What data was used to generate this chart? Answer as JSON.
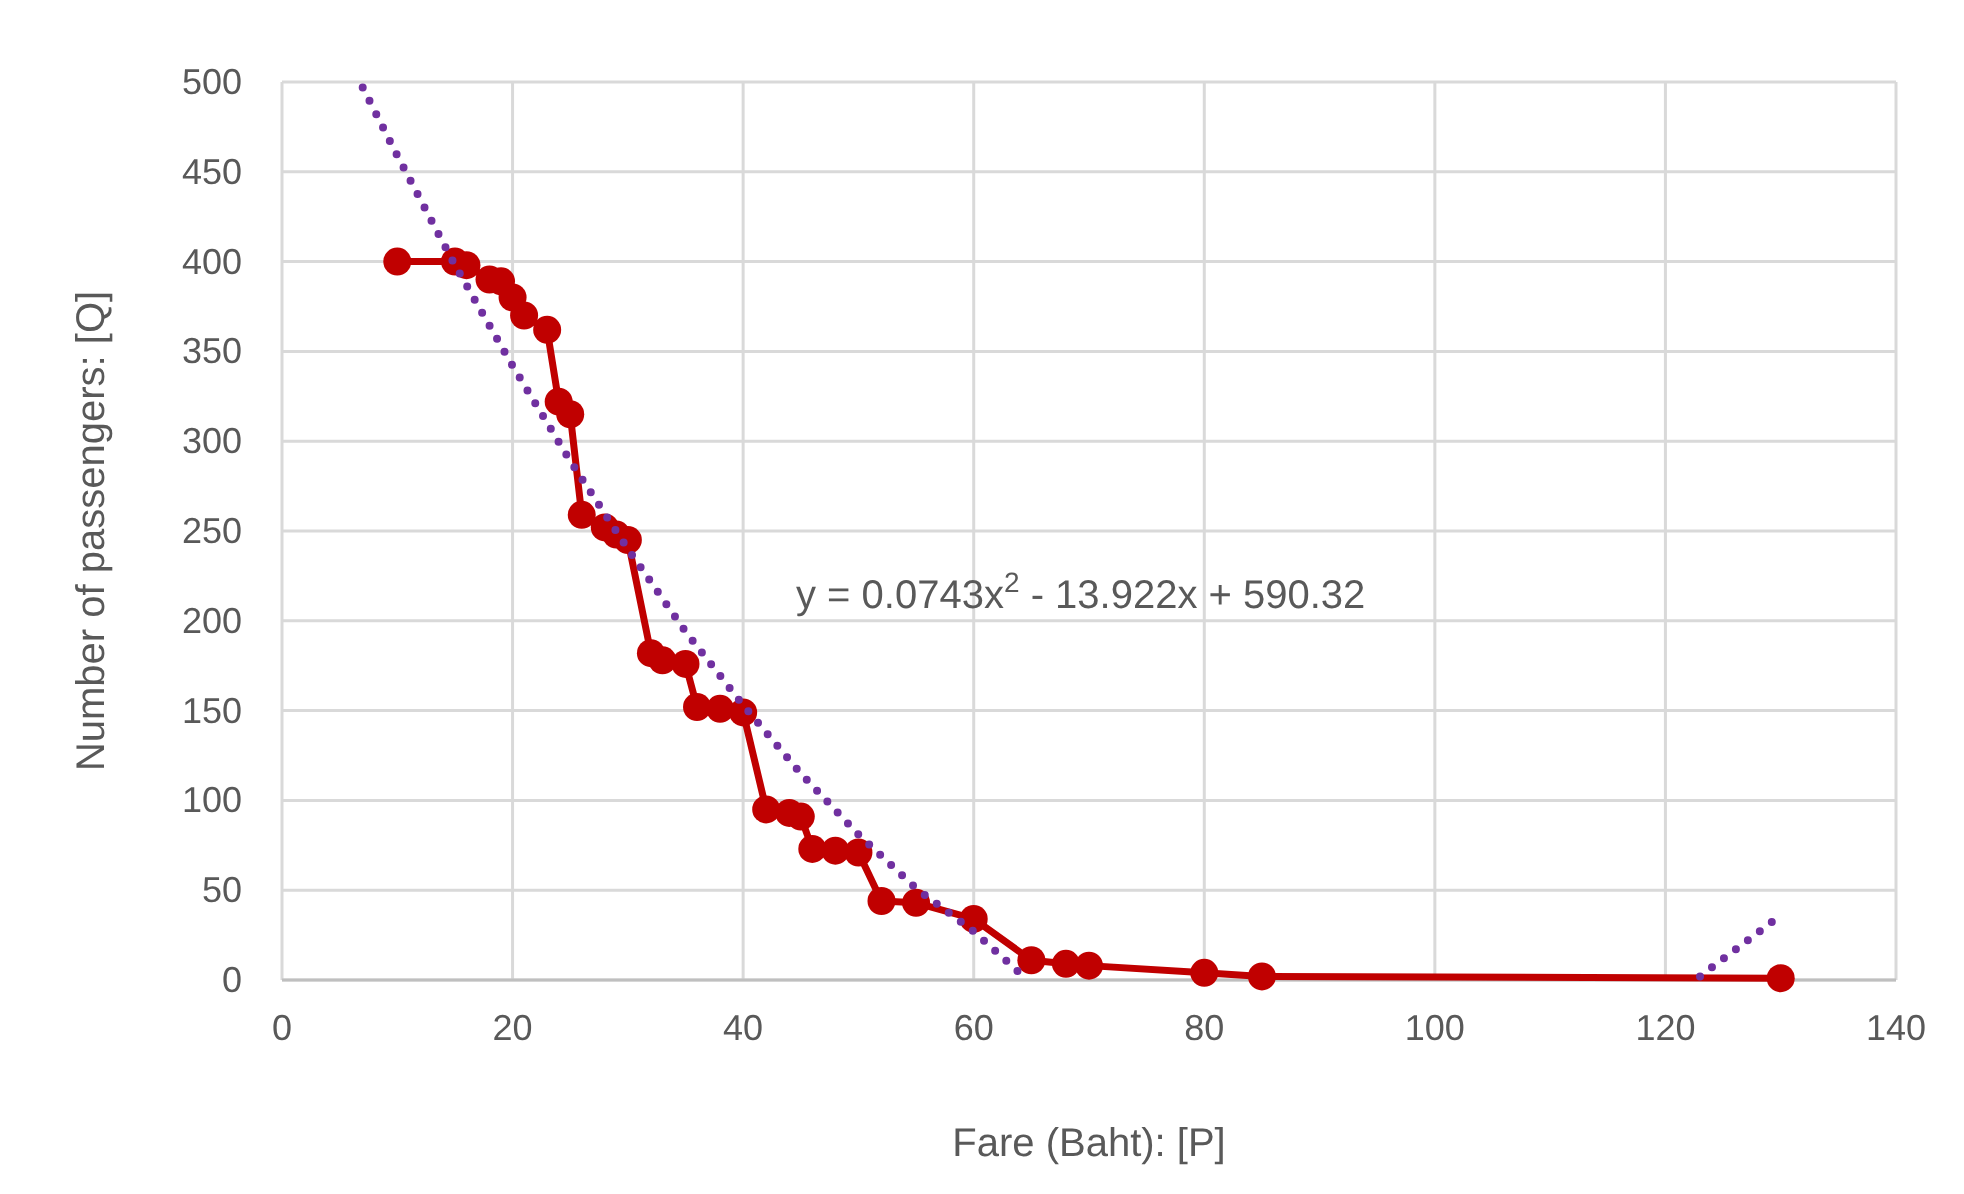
{
  "chart_data": {
    "type": "line",
    "xlabel": "Fare (Baht): [P]",
    "ylabel": "Number of passengers: [Q]",
    "xlim": [
      0,
      140
    ],
    "ylim": [
      0,
      500
    ],
    "xticks": [
      0,
      20,
      40,
      60,
      80,
      100,
      120,
      140
    ],
    "yticks": [
      0,
      50,
      100,
      150,
      200,
      250,
      300,
      350,
      400,
      450,
      500
    ],
    "grid": true,
    "series": [
      {
        "color": "#c00000",
        "marker": "circle",
        "line_style": "solid",
        "x": [
          10,
          15,
          16,
          18,
          19,
          20,
          21,
          23,
          24,
          25,
          26,
          28,
          29,
          30,
          32,
          33,
          35,
          36,
          38,
          40,
          42,
          44,
          45,
          46,
          48,
          50,
          52,
          55,
          60,
          65,
          68,
          70,
          80,
          85,
          130
        ],
        "values": [
          400,
          400,
          398,
          390,
          389,
          380,
          370,
          362,
          322,
          315,
          259,
          252,
          248,
          245,
          182,
          178,
          176,
          152,
          151,
          149,
          95,
          93,
          91,
          73,
          72,
          71,
          44,
          43,
          34,
          11,
          9,
          8,
          4,
          2,
          1
        ]
      },
      {
        "color": "#7030a0",
        "marker": "none",
        "line_style": "dotted",
        "x": [
          7,
          10,
          15,
          20,
          25,
          30,
          35,
          40,
          45,
          50,
          55,
          60,
          64.5,
          90,
          123,
          130
        ],
        "values": [
          497,
          459,
          398,
          342,
          289,
          240,
          194,
          153,
          115,
          81,
          51,
          27,
          1,
          null,
          2,
          36
        ]
      }
    ],
    "annotations": [
      "y = 0.0743x$^{2}$ - 13.922x + 590.32"
    ]
  }
}
